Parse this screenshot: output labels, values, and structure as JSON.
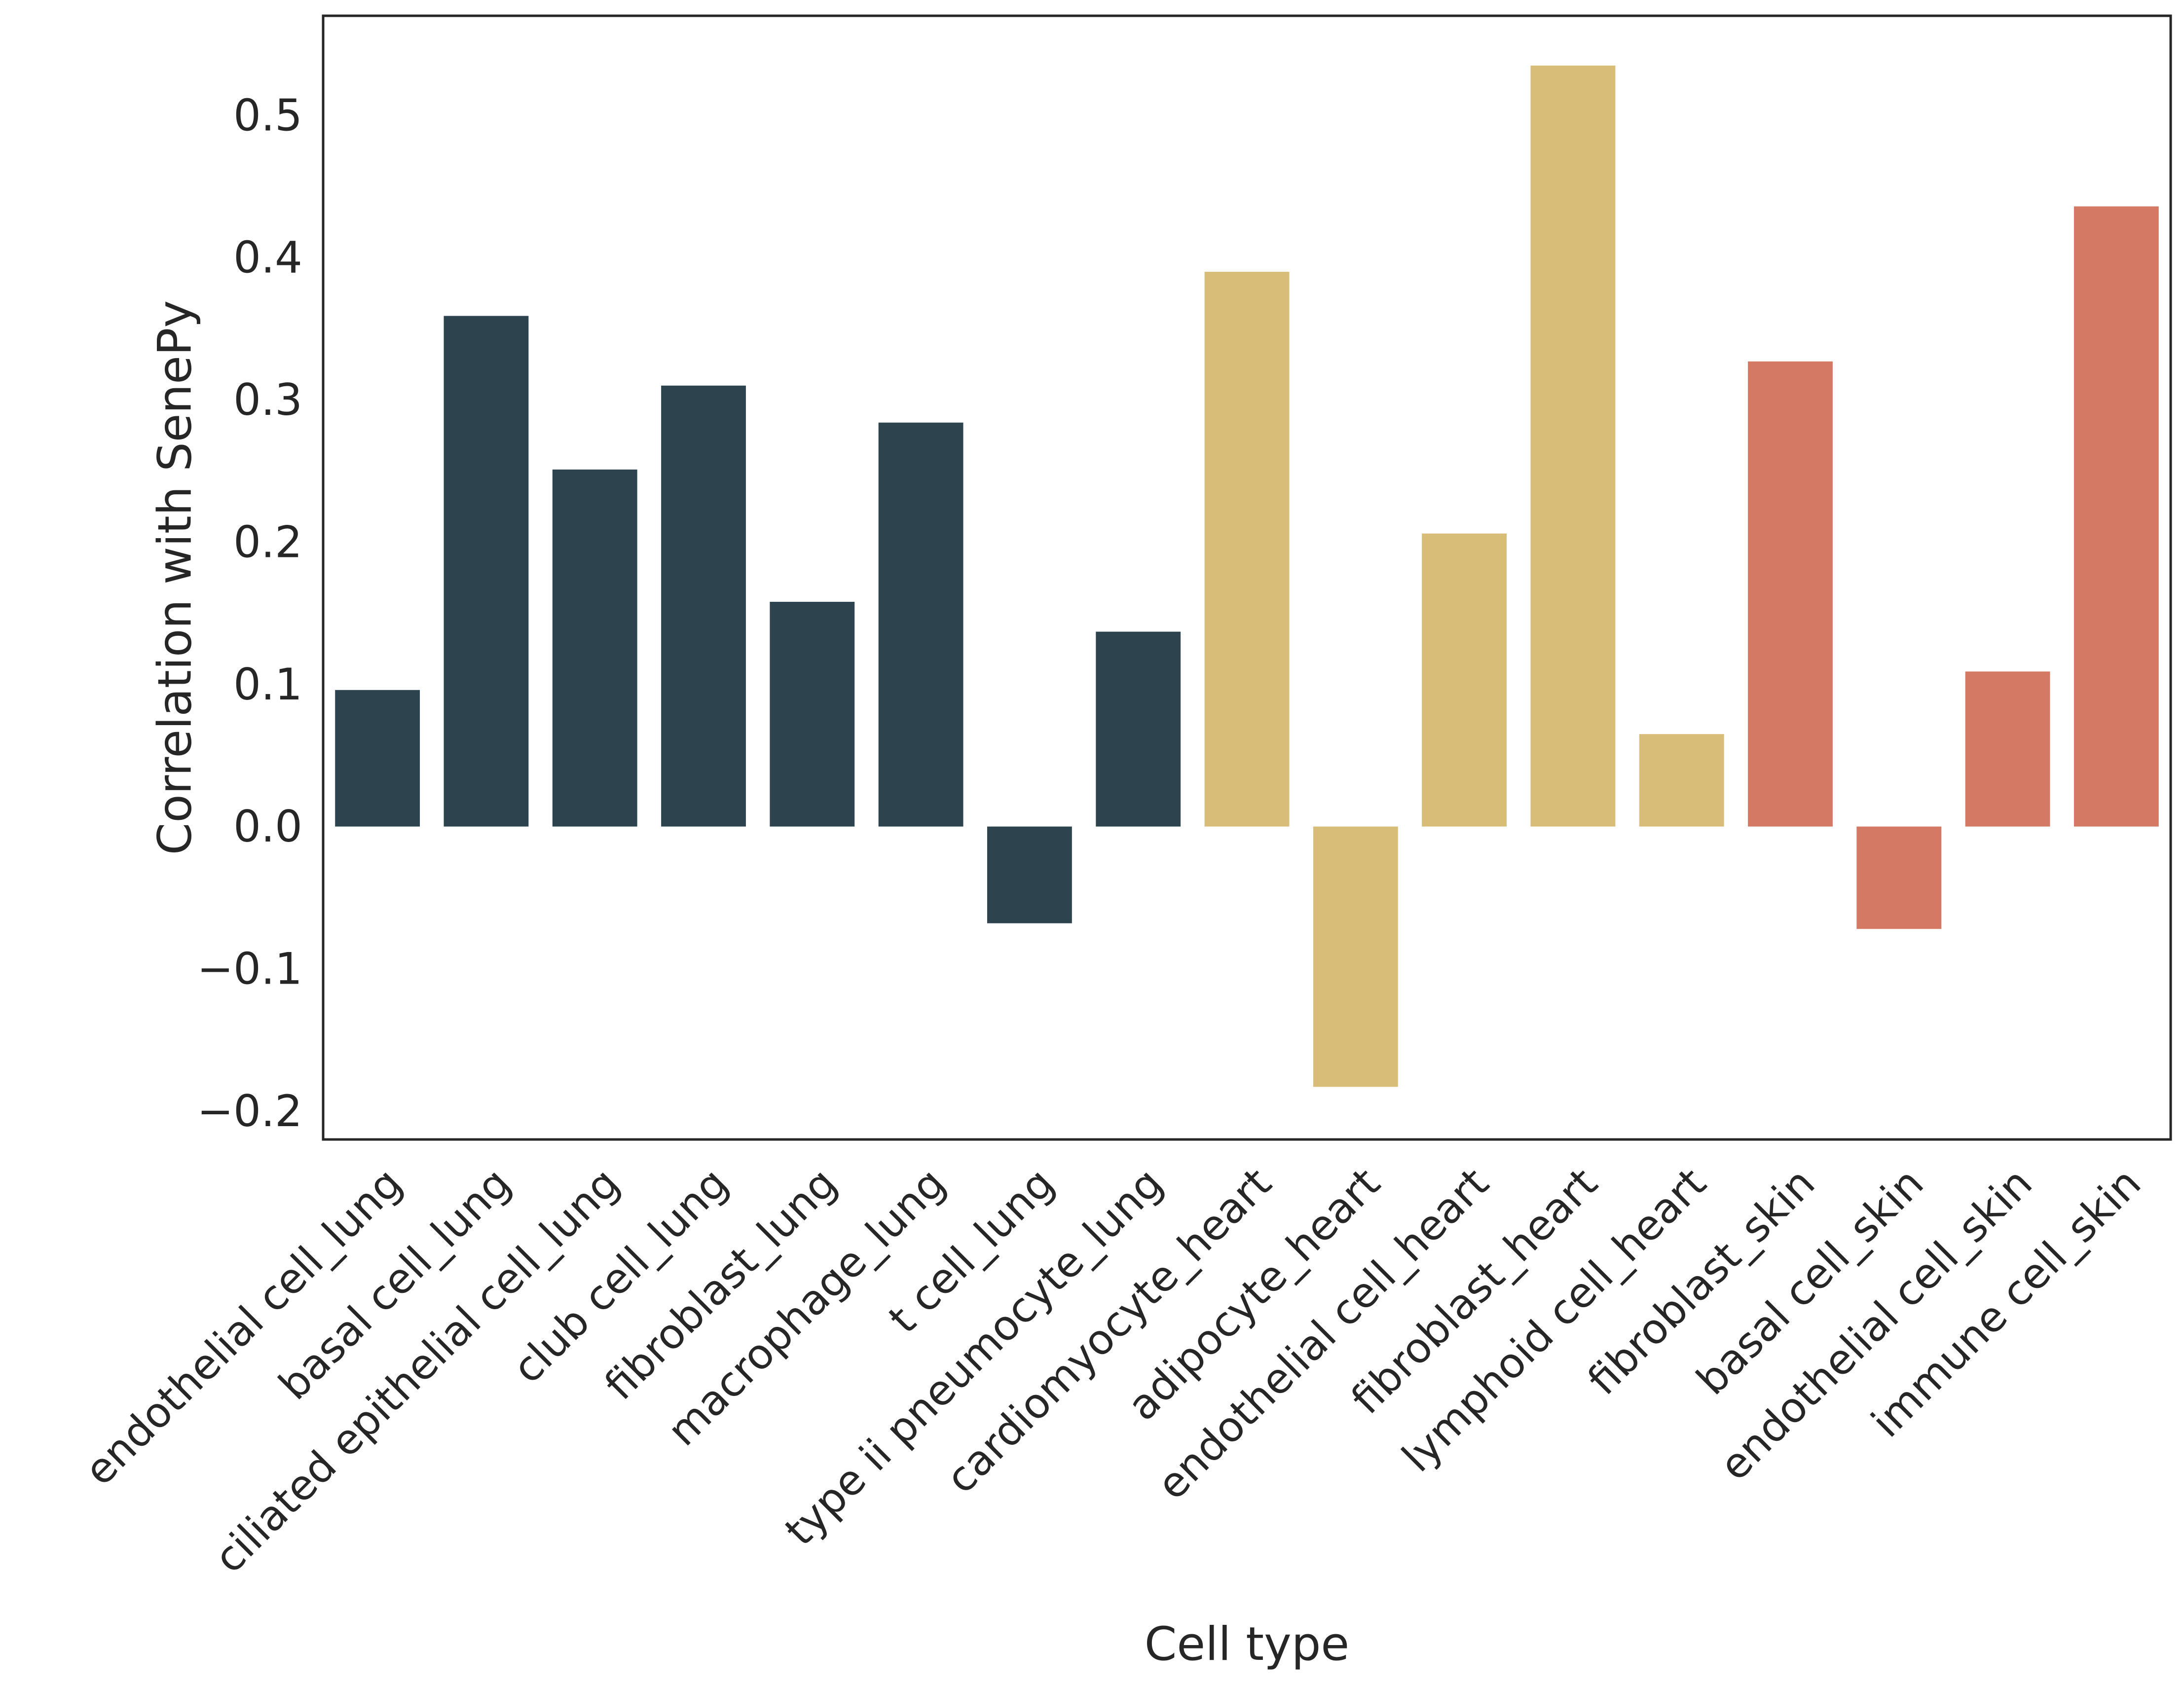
{
  "chart_data": {
    "type": "bar",
    "xlabel": "Cell type",
    "ylabel": "Correlation with SenePy",
    "ylim": [
      -0.22,
      0.57
    ],
    "yticks": [
      -0.2,
      -0.1,
      0.0,
      0.1,
      0.2,
      0.3,
      0.4,
      0.5
    ],
    "ytick_labels": [
      "−0.2",
      "−0.1",
      "0.0",
      "0.1",
      "0.2",
      "0.3",
      "0.4",
      "0.5"
    ],
    "grid": false,
    "categories": [
      "endothelial cell_lung",
      "basal cell_lung",
      "ciliated epithelial cell_lung",
      "club cell_lung",
      "fibroblast_lung",
      "macrophage_lung",
      "t cell_lung",
      "type ii pneumocyte_lung",
      "cardiomyocyte_heart",
      "adipocyte_heart",
      "endothelial cell_heart",
      "fibroblast_heart",
      "lymphoid cell_heart",
      "fibroblast_skin",
      "basal cell_skin",
      "endothelial cell_skin",
      "immune cell_skin"
    ],
    "values": [
      0.096,
      0.359,
      0.251,
      0.31,
      0.158,
      0.284,
      -0.068,
      0.137,
      0.39,
      -0.183,
      0.206,
      0.535,
      0.065,
      0.327,
      -0.072,
      0.109,
      0.436
    ],
    "bar_colors": [
      "#2d434e",
      "#2d434e",
      "#2d434e",
      "#2d434e",
      "#2d434e",
      "#2d434e",
      "#2d434e",
      "#2d434e",
      "#d8bd79",
      "#d8bd79",
      "#d8bd79",
      "#d8bd79",
      "#d8bd79",
      "#d47a64",
      "#d47a64",
      "#d47a64",
      "#d47a64"
    ]
  }
}
